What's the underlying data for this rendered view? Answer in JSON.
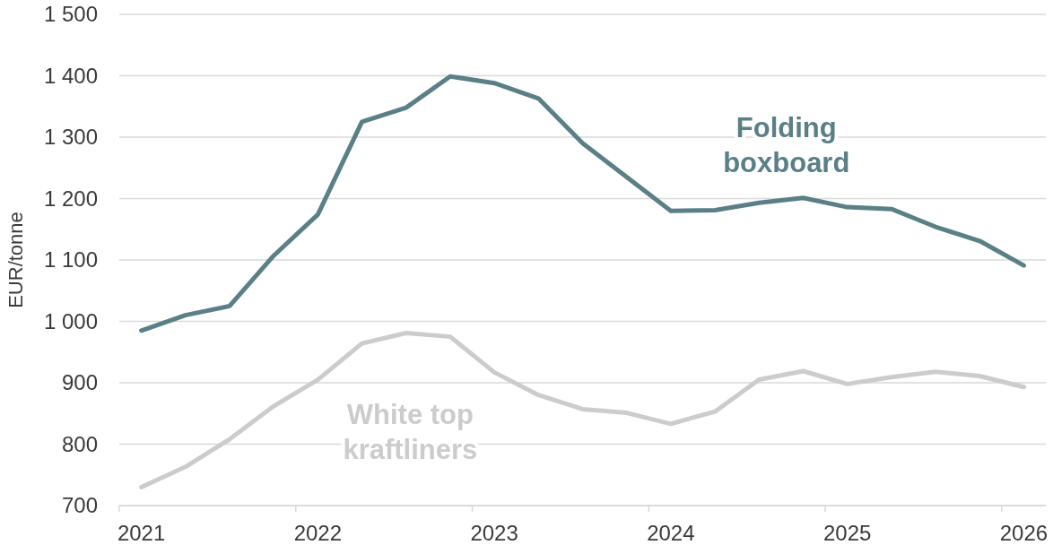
{
  "chart_data": {
    "type": "line",
    "ylabel": "EUR/tonne",
    "categories": [
      "2021",
      null,
      null,
      null,
      "2022",
      null,
      null,
      null,
      "2023",
      null,
      null,
      null,
      "2024",
      null,
      null,
      null,
      "2025",
      null,
      null,
      null,
      "2026"
    ],
    "ylim": [
      700,
      1500
    ],
    "yticks": [
      700,
      800,
      900,
      {
        "value": 1000,
        "label": "1 000"
      },
      {
        "value": 1100,
        "label": "1 100"
      },
      {
        "value": 1200,
        "label": "1 200"
      },
      {
        "value": 1300,
        "label": "1 300"
      },
      {
        "value": 1400,
        "label": "1 400"
      },
      {
        "value": 1500,
        "label": "1 500"
      }
    ],
    "grid": "y",
    "series": [
      {
        "name": "Folding boxboard",
        "color": "#5a7f86",
        "values": [
          985,
          1010,
          1025,
          1107,
          1174,
          1325,
          1348,
          1399,
          1388,
          1363,
          1290,
          1235,
          1180,
          1181,
          1193,
          1201,
          1186,
          1183,
          1154,
          1131,
          1091
        ]
      },
      {
        "name": "White top kraftliners",
        "color": "#cccccc",
        "values": [
          730,
          763,
          808,
          862,
          905,
          964,
          981,
          975,
          917,
          880,
          857,
          851,
          833,
          853,
          905,
          919,
          898,
          909,
          918,
          911,
          893
        ]
      }
    ]
  }
}
